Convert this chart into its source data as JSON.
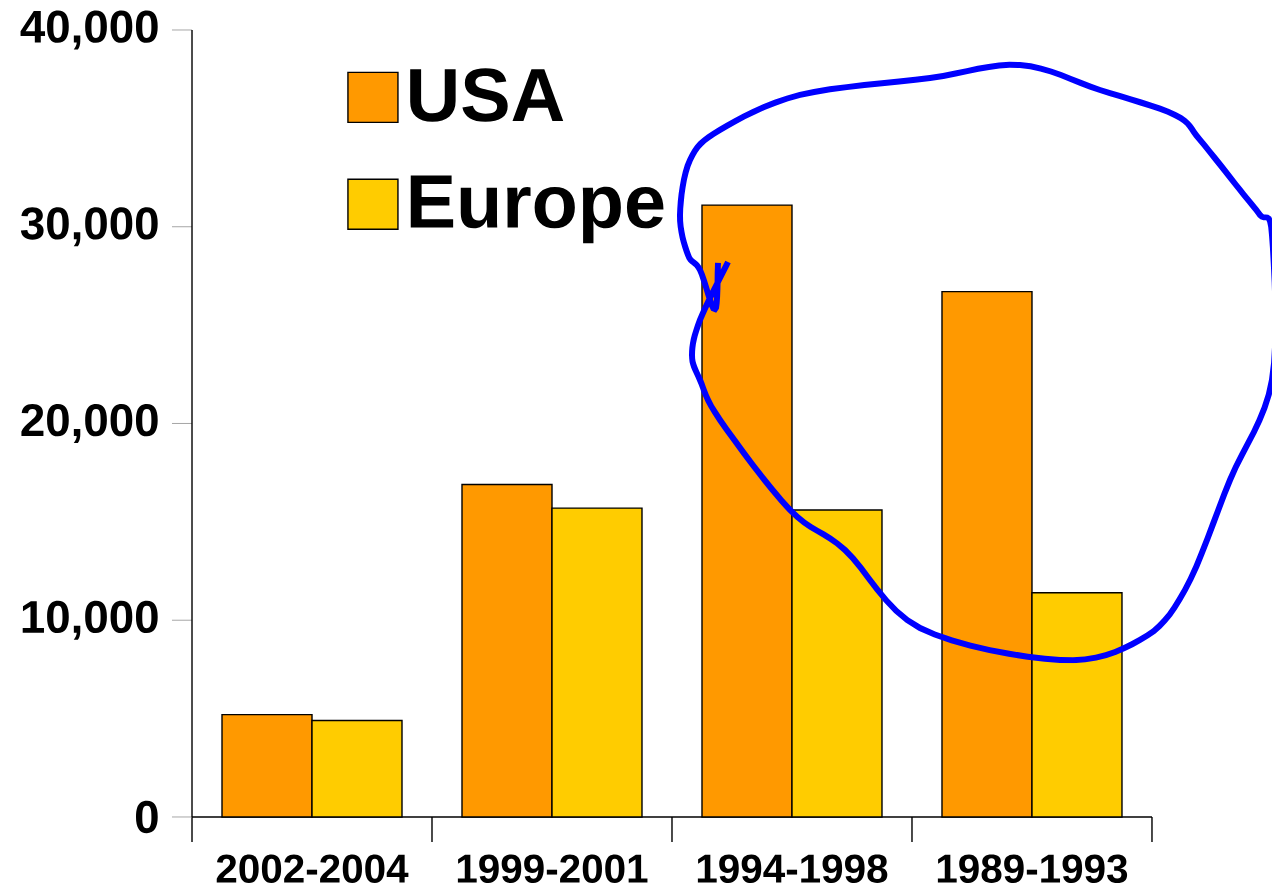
{
  "chart_data": {
    "type": "bar",
    "categories": [
      "2002-2004",
      "1999-2001",
      "1994-1998",
      "1989-1993"
    ],
    "series": [
      {
        "name": "USA",
        "color": "#ff9900",
        "values": [
          5200,
          16900,
          31100,
          26700
        ]
      },
      {
        "name": "Europe",
        "color": "#ffcc00",
        "values": [
          4900,
          15700,
          15600,
          11400
        ]
      }
    ],
    "ylim": [
      0,
      40000
    ],
    "yticks": [
      0,
      {
        "value": 10000,
        "label": "10,000"
      },
      {
        "value": 20000,
        "label": "20,000"
      },
      {
        "value": 30000,
        "label": "30,000"
      },
      {
        "value": 40000,
        "label": "40,000"
      }
    ],
    "legend": "top left"
  }
}
